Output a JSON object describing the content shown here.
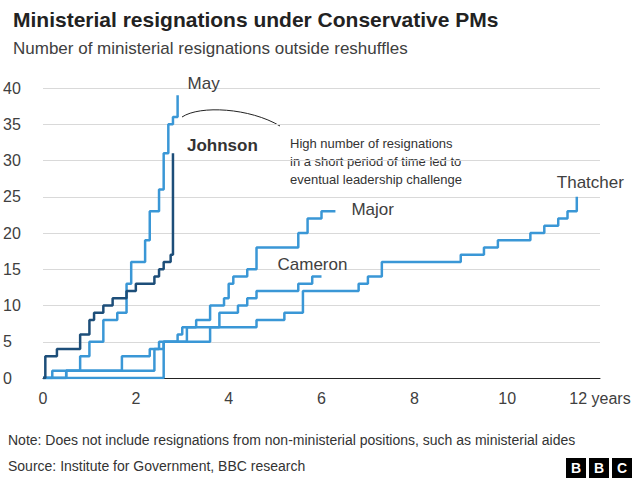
{
  "chart_data": {
    "type": "line",
    "title": "Ministerial resignations under Conservative PMs",
    "subtitle": "Number of ministerial resignations outside reshuffles",
    "annotation": "High number of resignations\nin a short period of time led to\neventual leadership challenge",
    "note": "Note: Does not include resignations from non-ministerial positions, such as ministerial aides",
    "source": "Source: Institute for Government, BBC research",
    "logo": "BBC",
    "xlim": [
      0,
      12
    ],
    "xticks": [
      0,
      2,
      4,
      6,
      8,
      10,
      {
        "value": 12,
        "label": "12 years"
      }
    ],
    "ylim": [
      0,
      40
    ],
    "yticks": [
      0,
      5,
      10,
      15,
      20,
      25,
      30,
      35,
      40
    ],
    "grid": true,
    "line_style": "step",
    "series": [
      {
        "name": "May",
        "color": "#3a97d6",
        "x": [
          0,
          0.5,
          0.8,
          1.0,
          1.3,
          1.6,
          1.8,
          1.9,
          2.1,
          2.2,
          2.3,
          2.5,
          2.6,
          2.7,
          2.8,
          2.9
        ],
        "values": [
          0,
          1,
          3,
          5,
          8,
          9,
          13,
          16,
          16,
          19,
          23,
          26,
          31,
          35,
          36,
          39
        ]
      },
      {
        "name": "Johnson",
        "color": "#1d4e79",
        "x": [
          0,
          0.05,
          0.3,
          0.8,
          1.0,
          1.1,
          1.3,
          1.5,
          1.8,
          2.0,
          2.4,
          2.5,
          2.6,
          2.75,
          2.8
        ],
        "values": [
          0,
          3,
          4,
          6,
          8,
          9,
          10,
          11,
          12,
          13,
          14,
          15,
          16,
          17,
          31
        ]
      },
      {
        "name": "Major",
        "color": "#3a97d6",
        "x": [
          0,
          2.5,
          2.6,
          2.9,
          3.0,
          3.3,
          3.6,
          3.9,
          4.0,
          4.1,
          4.4,
          4.6,
          5.4,
          5.5,
          5.7,
          6.0,
          6.3
        ],
        "values": [
          0,
          0,
          5,
          6,
          7,
          8,
          10,
          11,
          13,
          14,
          15,
          18,
          18,
          20,
          22,
          23,
          23
        ]
      },
      {
        "name": "Cameron",
        "color": "#3a97d6",
        "x": [
          0,
          0.2,
          1.5,
          1.7,
          2.3,
          2.5,
          3.0,
          3.1,
          3.6,
          3.8,
          4.2,
          4.4,
          4.6,
          5.3,
          5.5,
          5.8,
          6.0
        ],
        "values": [
          0,
          1,
          1,
          3,
          4,
          5,
          5,
          7,
          7,
          9,
          10,
          11,
          12,
          12,
          13,
          14,
          14
        ]
      },
      {
        "name": "Thatcher",
        "color": "#3a97d6",
        "x": [
          0,
          0.5,
          1.5,
          2.4,
          2.6,
          3.2,
          3.6,
          4.2,
          4.6,
          5.2,
          5.6,
          6.5,
          6.8,
          7.0,
          7.3,
          8.5,
          9.0,
          9.5,
          9.8,
          10.4,
          10.5,
          10.8,
          11.1,
          11.3,
          11.5
        ],
        "values": [
          0,
          1,
          1,
          4,
          5,
          5,
          7,
          7,
          8,
          9,
          12,
          12,
          13,
          14,
          16,
          16,
          17,
          18,
          19,
          19,
          20,
          21,
          22,
          23,
          25
        ]
      }
    ]
  }
}
